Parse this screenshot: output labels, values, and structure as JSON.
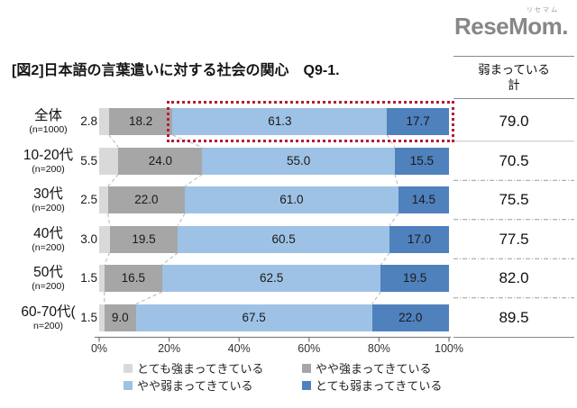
{
  "logo": {
    "text": "ReseMom.",
    "ruby": "リセマム"
  },
  "title": "[図2]日本語の言葉遣いに対する社会の関心　Q9-1.",
  "summary_column": {
    "header_line1": "弱まっている",
    "header_line2": "計"
  },
  "chart_data": {
    "type": "bar",
    "orientation": "horizontal",
    "stacked": true,
    "x_axis": {
      "ticks": [
        "0%",
        "20%",
        "40%",
        "60%",
        "80%",
        "100%"
      ],
      "range": [
        0,
        100
      ],
      "unit": "%"
    },
    "series": [
      {
        "name": "とても強まってきている",
        "color": "#d9d9d9"
      },
      {
        "name": "やや強まってきている",
        "color": "#a6a6a6"
      },
      {
        "name": "やや弱まってきている",
        "color": "#9ec2e5"
      },
      {
        "name": "とても弱まってきている",
        "color": "#4f81bd"
      }
    ],
    "rows": [
      {
        "category": "全体",
        "note": "(n=1000)",
        "values": [
          "2.8",
          "18.2",
          "61.3",
          "17.7"
        ],
        "total": "79.0"
      },
      {
        "category": "10-20代",
        "note": "(n=200)",
        "values": [
          "5.5",
          "24.0",
          "55.0",
          "15.5"
        ],
        "total": "70.5"
      },
      {
        "category": "30代",
        "note": "(n=200)",
        "values": [
          "2.5",
          "22.0",
          "61.0",
          "14.5"
        ],
        "total": "75.5"
      },
      {
        "category": "40代",
        "note": "(n=200)",
        "values": [
          "3.0",
          "19.5",
          "60.5",
          "17.0"
        ],
        "total": "77.5"
      },
      {
        "category": "50代",
        "note": "(n=200)",
        "values": [
          "1.5",
          "16.5",
          "62.5",
          "19.5"
        ],
        "total": "82.0"
      },
      {
        "category": "60-70代(",
        "note": "n=200)",
        "values": [
          "1.5",
          "9.0",
          "67.5",
          "22.0"
        ],
        "total": "89.5"
      }
    ],
    "totals_label_values": [
      "79.0",
      "70.5",
      "75.5",
      "77.5",
      "82.0",
      "89.5"
    ],
    "highlight": {
      "row_index": 0,
      "segments": [
        2,
        3
      ],
      "color": "#b01e35"
    },
    "legend_position": "bottom",
    "grid": false
  }
}
